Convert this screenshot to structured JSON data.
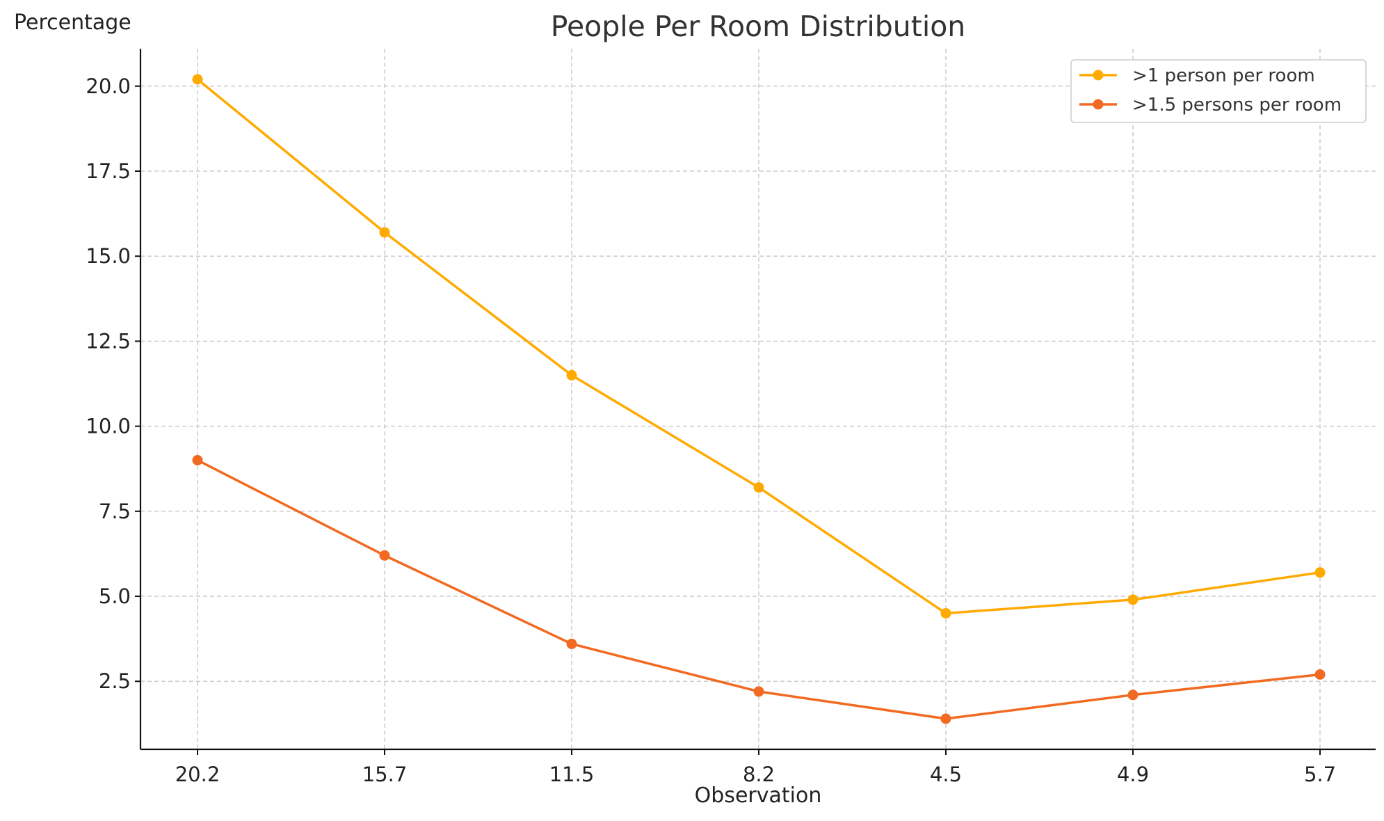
{
  "chart_data": {
    "type": "line",
    "title": "People Per Room Distribution",
    "xlabel": "Observation",
    "ylabel": "Percentage",
    "categories": [
      "20.2",
      "15.7",
      "11.5",
      "8.2",
      "4.5",
      "4.9",
      "5.7"
    ],
    "series": [
      {
        "name": ">1 person per room",
        "color": "#FFAA00",
        "values": [
          20.2,
          15.7,
          11.5,
          8.2,
          4.5,
          4.9,
          5.7
        ]
      },
      {
        "name": ">1.5 persons per room",
        "color": "#F26A21",
        "values": [
          9.0,
          6.2,
          3.6,
          2.2,
          1.4,
          2.1,
          2.7
        ]
      }
    ],
    "ylim": [
      0.5,
      21.1
    ],
    "yticks": [
      "2.5",
      "5.0",
      "7.5",
      "10.0",
      "12.5",
      "15.0",
      "17.5",
      "20.0"
    ],
    "grid": true,
    "legend": "top-right"
  }
}
